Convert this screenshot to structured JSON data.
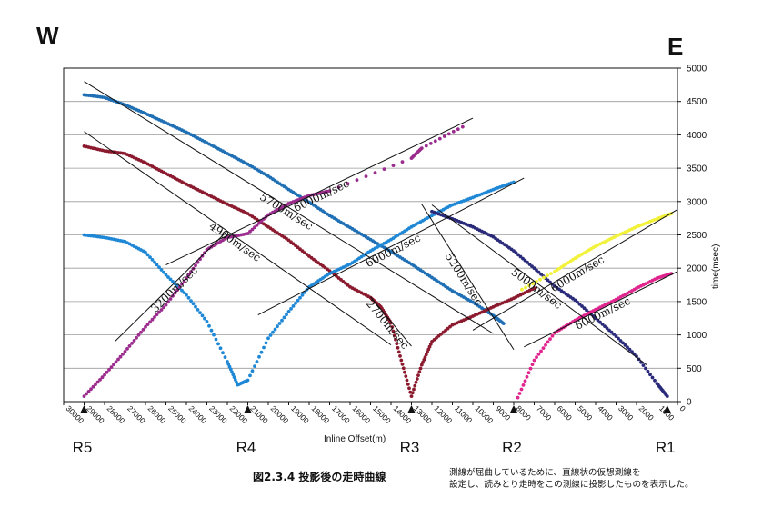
{
  "caption": "図2.3.4 投影後の走時曲線",
  "note": [
    "測線が屈曲しているために、直線状の仮想測線を",
    "設定し、読みとり走時をこの測線に投影したものを表示した。"
  ],
  "chart_data": {
    "type": "scatter",
    "title": "",
    "xlabel": "Inline Offset(m)",
    "ylabel": "time(msec)",
    "xlim": [
      30000,
      0
    ],
    "ylim": [
      0,
      5000
    ],
    "x_ticks": [
      30000,
      29000,
      28000,
      27000,
      26000,
      25000,
      24000,
      23000,
      22000,
      21000,
      20000,
      19000,
      18000,
      17000,
      16000,
      15000,
      14000,
      13000,
      12000,
      11000,
      10000,
      9000,
      8000,
      7000,
      6000,
      5000,
      4000,
      3000,
      2000,
      1000,
      0
    ],
    "y_ticks": [
      0,
      500,
      1000,
      1500,
      2000,
      2500,
      3000,
      3500,
      4000,
      4500,
      5000
    ],
    "grid": "horizontal",
    "directions": {
      "left": "W",
      "right": "E"
    },
    "receivers": [
      {
        "name": "R5",
        "x": 29000
      },
      {
        "name": "R4",
        "x": 21000
      },
      {
        "name": "R3",
        "x": 13000
      },
      {
        "name": "R2",
        "x": 8000
      },
      {
        "name": "R1",
        "x": 500
      }
    ],
    "series": [
      {
        "color": "#1f6fb5",
        "points": [
          [
            29000,
            4600
          ],
          [
            28000,
            4560
          ],
          [
            27000,
            4450
          ],
          [
            26000,
            4320
          ],
          [
            25000,
            4180
          ],
          [
            24000,
            4040
          ],
          [
            23000,
            3880
          ],
          [
            22000,
            3720
          ],
          [
            21000,
            3560
          ],
          [
            20000,
            3380
          ],
          [
            19000,
            3180
          ],
          [
            18000,
            2990
          ],
          [
            17000,
            2790
          ],
          [
            16000,
            2610
          ],
          [
            15000,
            2430
          ],
          [
            14000,
            2250
          ],
          [
            13000,
            2060
          ],
          [
            12000,
            1860
          ],
          [
            11000,
            1660
          ],
          [
            10000,
            1490
          ],
          [
            9000,
            1290
          ],
          [
            8500,
            1170
          ]
        ]
      },
      {
        "color": "#8b1a2e",
        "points": [
          [
            29000,
            3830
          ],
          [
            28000,
            3760
          ],
          [
            27000,
            3720
          ],
          [
            26000,
            3580
          ],
          [
            25000,
            3420
          ],
          [
            24000,
            3260
          ],
          [
            23000,
            3110
          ],
          [
            22000,
            2960
          ],
          [
            21000,
            2820
          ],
          [
            20000,
            2620
          ],
          [
            19000,
            2420
          ],
          [
            18000,
            2180
          ],
          [
            17000,
            1960
          ],
          [
            16000,
            1720
          ],
          [
            15000,
            1560
          ],
          [
            14500,
            1420
          ],
          [
            14000,
            1180
          ],
          [
            13500,
            620
          ],
          [
            13000,
            80
          ],
          [
            12500,
            550
          ],
          [
            12000,
            900
          ],
          [
            11000,
            1150
          ],
          [
            10000,
            1280
          ],
          [
            9000,
            1420
          ],
          [
            8000,
            1550
          ],
          [
            7000,
            1700
          ]
        ]
      },
      {
        "color": "#1e88d6",
        "points": [
          [
            29000,
            2500
          ],
          [
            28000,
            2460
          ],
          [
            27000,
            2400
          ],
          [
            26000,
            2240
          ],
          [
            25000,
            1900
          ],
          [
            24000,
            1600
          ],
          [
            23000,
            1200
          ],
          [
            22000,
            600
          ],
          [
            21500,
            250
          ],
          [
            21000,
            320
          ],
          [
            20000,
            950
          ],
          [
            19000,
            1350
          ],
          [
            18000,
            1720
          ],
          [
            17000,
            1920
          ],
          [
            16000,
            2060
          ],
          [
            15000,
            2260
          ],
          [
            14000,
            2430
          ],
          [
            13000,
            2620
          ],
          [
            12000,
            2790
          ],
          [
            11000,
            2950
          ],
          [
            10000,
            3060
          ],
          [
            9000,
            3180
          ],
          [
            8000,
            3290
          ]
        ]
      },
      {
        "color": "#2a2a7a",
        "points": [
          [
            12000,
            2850
          ],
          [
            11000,
            2740
          ],
          [
            10000,
            2620
          ],
          [
            9000,
            2470
          ],
          [
            8000,
            2260
          ],
          [
            7000,
            2000
          ],
          [
            6000,
            1730
          ],
          [
            5000,
            1520
          ],
          [
            4000,
            1250
          ],
          [
            3000,
            980
          ],
          [
            2000,
            680
          ],
          [
            1000,
            270
          ],
          [
            500,
            80
          ]
        ]
      },
      {
        "color": "#9b2c8e",
        "points": [
          [
            29000,
            80
          ],
          [
            28000,
            400
          ],
          [
            27000,
            750
          ],
          [
            26000,
            1120
          ],
          [
            25000,
            1450
          ],
          [
            24000,
            1850
          ],
          [
            23000,
            2280
          ],
          [
            22000,
            2460
          ],
          [
            21000,
            2520
          ],
          [
            20000,
            2800
          ],
          [
            19000,
            2970
          ],
          [
            18000,
            3090
          ],
          [
            17000,
            3160
          ],
          [
            13000,
            3650
          ],
          [
            12500,
            3800
          ],
          [
            10500,
            4120
          ]
        ]
      },
      {
        "color": "#e0258f",
        "points": [
          [
            7800,
            60
          ],
          [
            7000,
            620
          ],
          [
            6000,
            1030
          ],
          [
            5000,
            1220
          ],
          [
            4000,
            1380
          ],
          [
            3000,
            1530
          ],
          [
            2000,
            1700
          ],
          [
            1000,
            1850
          ],
          [
            300,
            1920
          ]
        ]
      },
      {
        "color": "#f2f23a",
        "points": [
          [
            7600,
            1680
          ],
          [
            6000,
            1950
          ],
          [
            5000,
            2150
          ],
          [
            4000,
            2330
          ],
          [
            3000,
            2480
          ],
          [
            2000,
            2620
          ],
          [
            1000,
            2740
          ],
          [
            300,
            2820
          ]
        ]
      }
    ],
    "fit_lines": [
      {
        "label": "5700m/sec",
        "p1": [
          29000,
          4800
        ],
        "p2": [
          9000,
          1020
        ]
      },
      {
        "label": "4900m/sec",
        "p1": [
          29000,
          4050
        ],
        "p2": [
          14000,
          850
        ]
      },
      {
        "label": "3200m/sec",
        "p1": [
          27500,
          900
        ],
        "p2": [
          22000,
          2560
        ]
      },
      {
        "label": "6000m/sec",
        "p1": [
          25000,
          2050
        ],
        "p2": [
          10000,
          4250
        ]
      },
      {
        "label": "6000m/sec",
        "p1": [
          20500,
          1300
        ],
        "p2": [
          7500,
          3350
        ]
      },
      {
        "label": "5200m/sec",
        "p1": [
          12500,
          2960
        ],
        "p2": [
          8000,
          780
        ]
      },
      {
        "label": "2700m/sec",
        "p1": [
          15000,
          1570
        ],
        "p2": [
          13000,
          830
        ]
      },
      {
        "label": "5000m/sec",
        "p1": [
          12000,
          2950
        ],
        "p2": [
          1500,
          550
        ]
      },
      {
        "label": "6000m/sec",
        "p1": [
          10000,
          1070
        ],
        "p2": [
          0,
          2880
        ]
      },
      {
        "label": "6000m/sec",
        "p1": [
          7500,
          820
        ],
        "p2": [
          0,
          1950
        ]
      }
    ]
  }
}
